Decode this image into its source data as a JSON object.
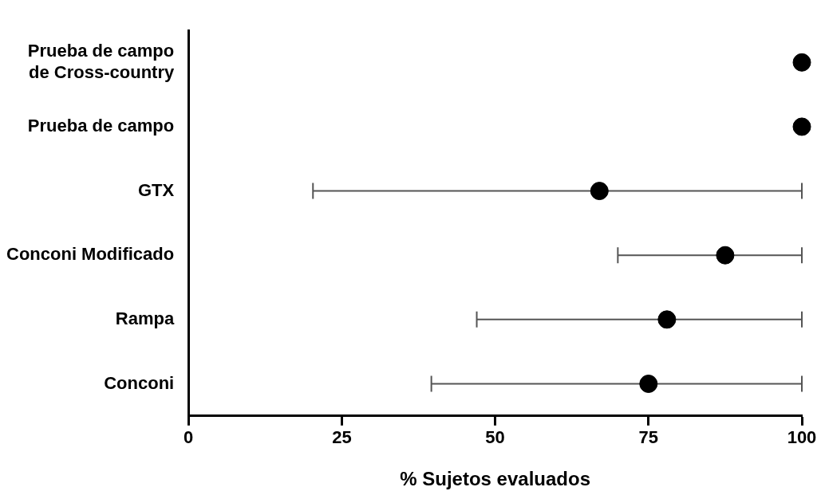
{
  "chart_data": {
    "type": "scatter",
    "orientation": "horizontal",
    "xlabel": "% Sujetos evaluados",
    "categories": [
      "Prueba de campo de Cross-country",
      "Prueba de campo",
      "GTX",
      "Conconi Modificado",
      "Rampa",
      "Conconi"
    ],
    "values": [
      100,
      100,
      67,
      87.5,
      78,
      75
    ],
    "errors": [
      null,
      null,
      [
        20.3,
        100
      ],
      [
        70,
        100
      ],
      [
        47,
        100
      ],
      [
        39.6,
        100
      ]
    ],
    "color": "#000000",
    "marker": "circle",
    "xlim": [
      0,
      100
    ],
    "xticks": [
      0,
      25,
      50,
      75,
      100
    ],
    "grid": false,
    "legend": false
  }
}
